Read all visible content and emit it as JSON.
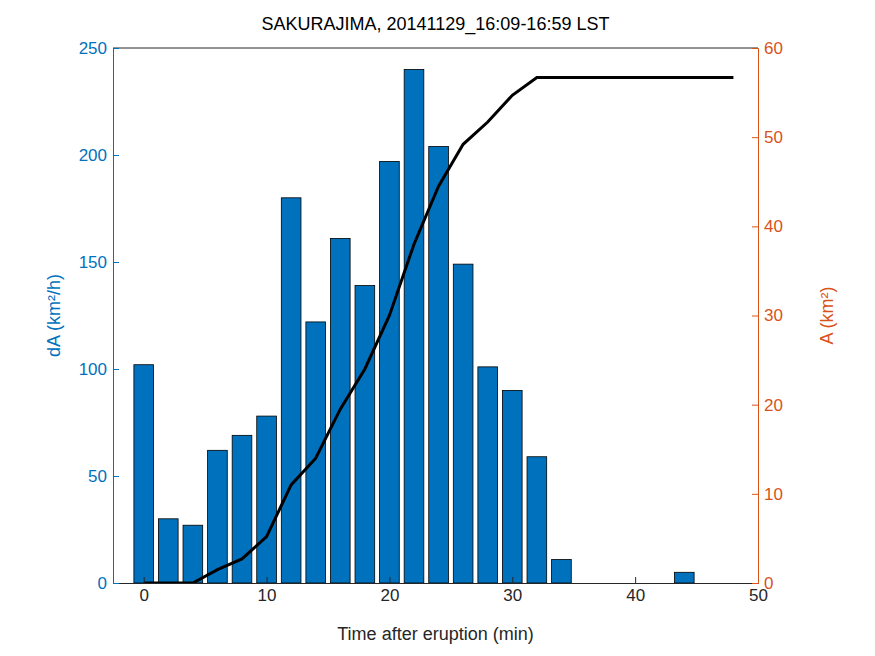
{
  "chart_data": {
    "type": "bar",
    "title": "SAKURAJIMA, 20141129_16:09-16:59 LST",
    "x_label": "Time after eruption (min)",
    "y_label": "dA (km²/h)",
    "y2_label": "A (km²)",
    "x": [
      0,
      2,
      4,
      6,
      8,
      10,
      12,
      14,
      16,
      18,
      20,
      22,
      24,
      26,
      28,
      30,
      32,
      34,
      36,
      38,
      40,
      42,
      44,
      46,
      48
    ],
    "series": [
      {
        "type": "bar",
        "color": "#0072bd",
        "values": [
          102,
          30,
          27,
          62,
          69,
          78,
          180,
          122,
          161,
          139,
          197,
          240,
          204,
          149,
          101,
          90,
          59,
          11,
          0,
          0,
          0,
          0,
          5,
          null,
          null
        ]
      },
      {
        "type": "line",
        "axis": "y2",
        "color": "#000000",
        "line_style": "solid",
        "values": [
          0,
          0,
          0,
          1.5,
          2.7,
          5.2,
          11,
          14,
          19.5,
          24,
          30,
          38,
          44.5,
          49.2,
          51.7,
          54.7,
          56.7,
          56.7,
          56.7,
          56.7,
          56.7,
          56.7,
          56.7,
          56.7,
          56.7
        ]
      }
    ],
    "xlim": [
      -2.5,
      50
    ],
    "xticks": [
      0,
      10,
      20,
      30,
      40,
      50
    ],
    "ylim": [
      0,
      250
    ],
    "yticks": [
      0,
      50,
      100,
      150,
      200,
      250
    ],
    "y2lim": [
      0,
      60
    ],
    "y2ticks": [
      0,
      10,
      20,
      30,
      40,
      50,
      60
    ],
    "grid": false
  }
}
